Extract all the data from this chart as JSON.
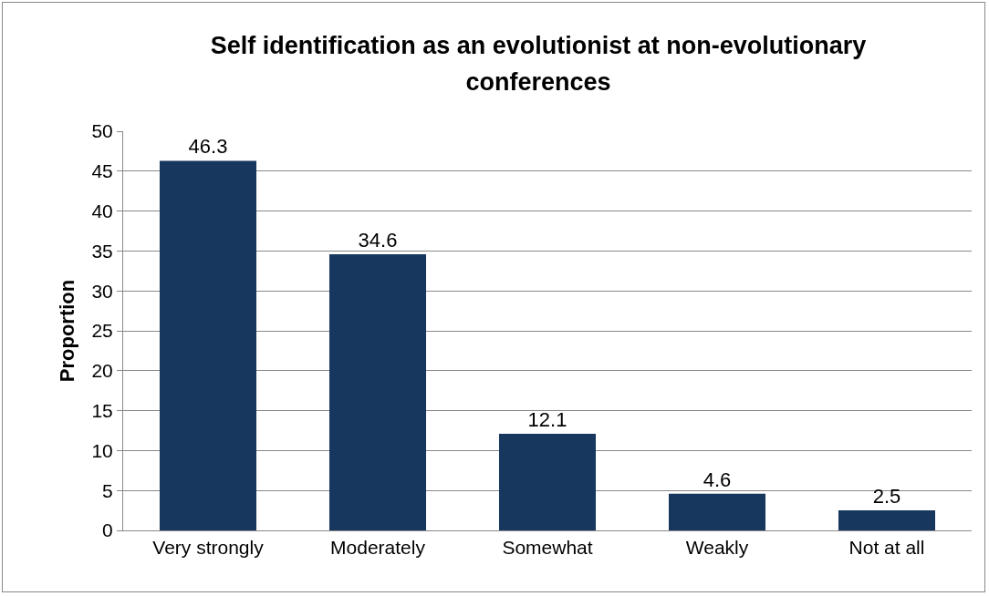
{
  "chart_data": {
    "type": "bar",
    "title": "Self identification as an evolutionist at non-evolutionary conferences",
    "ylabel": "Proportion",
    "categories": [
      "Very strongly",
      "Moderately",
      "Somewhat",
      "Weakly",
      "Not at all"
    ],
    "values": [
      46.3,
      34.6,
      12.1,
      4.6,
      2.5
    ],
    "color": "#17375e",
    "ylim": [
      0,
      50
    ],
    "yticks": [
      0,
      5,
      10,
      15,
      20,
      25,
      30,
      35,
      40,
      45,
      50
    ],
    "grid": "y",
    "data_labels": true
  }
}
